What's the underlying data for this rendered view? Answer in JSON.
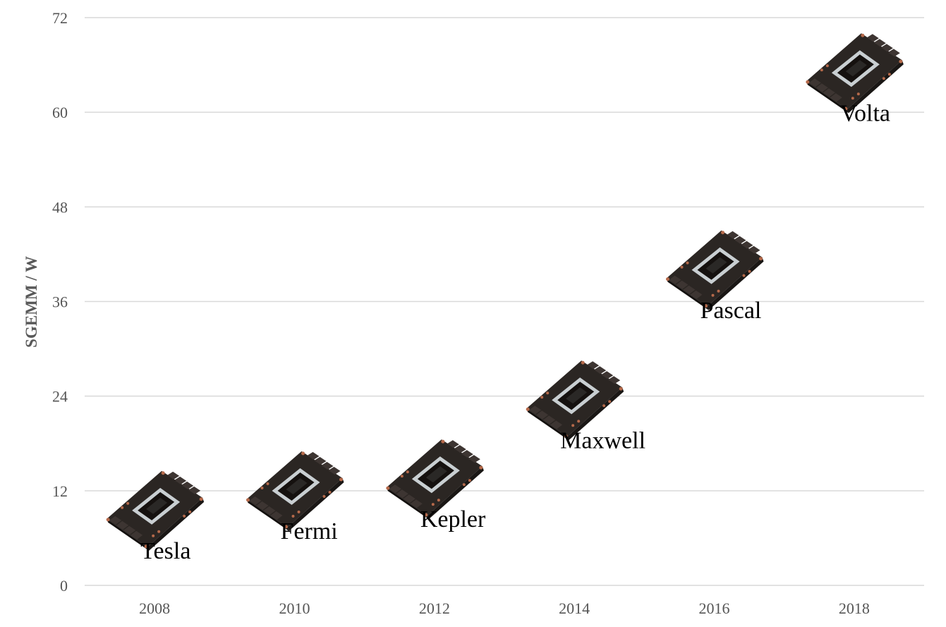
{
  "chart_data": {
    "type": "scatter",
    "title": "",
    "xlabel": "",
    "ylabel": "SGEMM / W",
    "ylim": [
      0,
      72
    ],
    "yticks": [
      0,
      12,
      24,
      36,
      48,
      60,
      72
    ],
    "xticks": [
      2008,
      2010,
      2012,
      2014,
      2016,
      2018
    ],
    "xlim": [
      2007,
      2019
    ],
    "grid": true,
    "marker": "gpu-board-icon",
    "points": [
      {
        "label": "Tesla",
        "x": 2008,
        "y": 9.5
      },
      {
        "label": "Fermi",
        "x": 2010,
        "y": 12
      },
      {
        "label": "Kepler",
        "x": 2012,
        "y": 13.5
      },
      {
        "label": "Maxwell",
        "x": 2014,
        "y": 23.5
      },
      {
        "label": "Pascal",
        "x": 2016,
        "y": 40
      },
      {
        "label": "Volta",
        "x": 2018,
        "y": 65
      }
    ]
  }
}
